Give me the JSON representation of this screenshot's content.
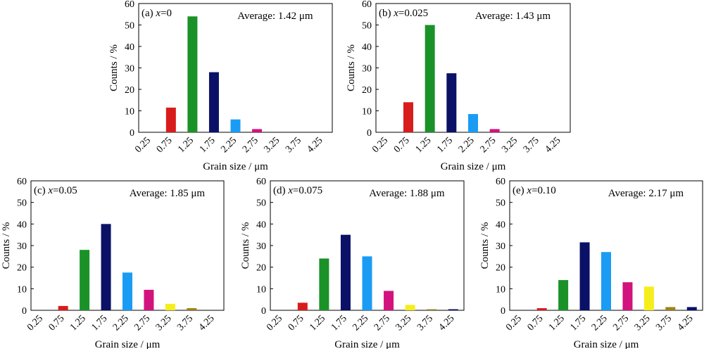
{
  "chart_data": [
    {
      "type": "bar",
      "panel_label": "(a) ",
      "x_label": "x",
      "x_value": "=0",
      "annotation": "Average: 1.42 μm",
      "xlabel": "Grain size / μm",
      "ylabel": "Counts / %",
      "ylim": [
        0,
        60
      ],
      "yticks": [
        "0",
        "10",
        "20",
        "30",
        "40",
        "50",
        "60"
      ],
      "categories": [
        "0.25",
        "0.75",
        "1.25",
        "1.75",
        "2.25",
        "2.75",
        "3.25",
        "3.75",
        "4.25"
      ],
      "values": [
        0,
        11.5,
        54,
        28,
        6,
        1.5,
        0,
        0,
        0
      ]
    },
    {
      "type": "bar",
      "panel_label": "(b) ",
      "x_label": "x",
      "x_value": "=0.025",
      "annotation": "Average: 1.43 μm",
      "xlabel": "Grain size / μm",
      "ylabel": "Counts / %",
      "ylim": [
        0,
        60
      ],
      "yticks": [
        "0",
        "10",
        "20",
        "30",
        "40",
        "50",
        "60"
      ],
      "categories": [
        "0.25",
        "0.75",
        "1.25",
        "1.75",
        "2.25",
        "2.75",
        "3.25",
        "3.75",
        "4.25"
      ],
      "values": [
        0,
        14,
        50,
        27.5,
        8.5,
        1.5,
        0,
        0,
        0
      ]
    },
    {
      "type": "bar",
      "panel_label": "(c) ",
      "x_label": "x",
      "x_value": "=0.05",
      "annotation": "Average: 1.85 μm",
      "xlabel": "Grain size / μm",
      "ylabel": "Counts / %",
      "ylim": [
        0,
        60
      ],
      "yticks": [
        "0",
        "10",
        "20",
        "30",
        "40",
        "50",
        "60"
      ],
      "categories": [
        "0.25",
        "0.75",
        "1.25",
        "1.75",
        "2.25",
        "2.75",
        "3.25",
        "3.75",
        "4.25"
      ],
      "values": [
        0,
        2,
        28,
        40,
        17.5,
        9.5,
        3,
        1,
        0
      ]
    },
    {
      "type": "bar",
      "panel_label": "(d) ",
      "x_label": "x",
      "x_value": "=0.075",
      "annotation": "Average: 1.88 μm",
      "xlabel": "Grain size / μm",
      "ylabel": "Counts / %",
      "ylim": [
        0,
        60
      ],
      "yticks": [
        "0",
        "10",
        "20",
        "30",
        "40",
        "50",
        "60"
      ],
      "categories": [
        "0.25",
        "0.75",
        "1.25",
        "1.75",
        "2.25",
        "2.75",
        "3.25",
        "3.75",
        "4.25"
      ],
      "values": [
        0,
        3.5,
        24,
        35,
        25,
        9,
        2.5,
        0.5,
        0.5
      ]
    },
    {
      "type": "bar",
      "panel_label": "(e) ",
      "x_label": "x",
      "x_value": "=0.10",
      "annotation": "Average: 2.17 μm",
      "xlabel": "Grain size / μm",
      "ylabel": "Counts / %",
      "ylim": [
        0,
        60
      ],
      "yticks": [
        "0",
        "10",
        "20",
        "30",
        "40",
        "50",
        "60"
      ],
      "categories": [
        "0.25",
        "0.75",
        "1.25",
        "1.75",
        "2.25",
        "2.75",
        "3.25",
        "3.75",
        "4.25"
      ],
      "values": [
        0,
        1,
        14,
        31.5,
        27,
        13,
        11,
        1.5,
        1.5
      ]
    }
  ],
  "bar_colors": [
    "#000000",
    "#d81c1c",
    "#1a9228",
    "#0a1167",
    "#1a9cf4",
    "#d2137d",
    "#f6ee1c",
    "#9b8419",
    "#0a1167"
  ]
}
